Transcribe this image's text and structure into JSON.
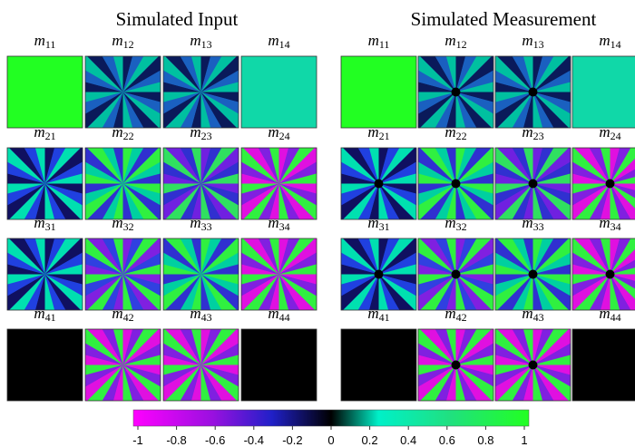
{
  "panels": [
    {
      "title": "Simulated Input",
      "labels": [
        [
          {
            "symbol": "m",
            "sub": "11"
          },
          {
            "symbol": "m",
            "sub": "12"
          },
          {
            "symbol": "m",
            "sub": "13"
          },
          {
            "symbol": "m",
            "sub": "14"
          }
        ],
        [
          {
            "symbol": "m",
            "sub": "21"
          },
          {
            "symbol": "m",
            "sub": "22"
          },
          {
            "symbol": "m",
            "sub": "23"
          },
          {
            "symbol": "m",
            "sub": "24"
          }
        ],
        [
          {
            "symbol": "m",
            "sub": "31"
          },
          {
            "symbol": "m",
            "sub": "32"
          },
          {
            "symbol": "m",
            "sub": "33"
          },
          {
            "symbol": "m",
            "sub": "34"
          }
        ],
        [
          {
            "symbol": "m",
            "sub": "41"
          },
          {
            "symbol": "m",
            "sub": "42"
          },
          {
            "symbol": "m",
            "sub": "43"
          },
          {
            "symbol": "m",
            "sub": "44"
          }
        ]
      ]
    },
    {
      "title": "Simulated Measurement",
      "labels": [
        [
          {
            "symbol": "m",
            "sub": "11"
          },
          {
            "symbol": "m",
            "sub": "12"
          },
          {
            "symbol": "m",
            "sub": "13"
          },
          {
            "symbol": "m",
            "sub": "14"
          }
        ],
        [
          {
            "symbol": "m",
            "sub": "21"
          },
          {
            "symbol": "m",
            "sub": "22"
          },
          {
            "symbol": "m",
            "sub": "23"
          },
          {
            "symbol": "m",
            "sub": "24"
          }
        ],
        [
          {
            "symbol": "m",
            "sub": "31"
          },
          {
            "symbol": "m",
            "sub": "32"
          },
          {
            "symbol": "m",
            "sub": "33"
          },
          {
            "symbol": "m",
            "sub": "34"
          }
        ],
        [
          {
            "symbol": "m",
            "sub": "41"
          },
          {
            "symbol": "m",
            "sub": "42"
          },
          {
            "symbol": "m",
            "sub": "43"
          },
          {
            "symbol": "m",
            "sub": "44"
          }
        ]
      ]
    }
  ],
  "colorbar": {
    "lim": [
      -1,
      1
    ],
    "ticks": [
      -1,
      -0.8,
      -0.6,
      -0.4,
      -0.2,
      0,
      0.2,
      0.4,
      0.6,
      0.8,
      1
    ]
  }
}
